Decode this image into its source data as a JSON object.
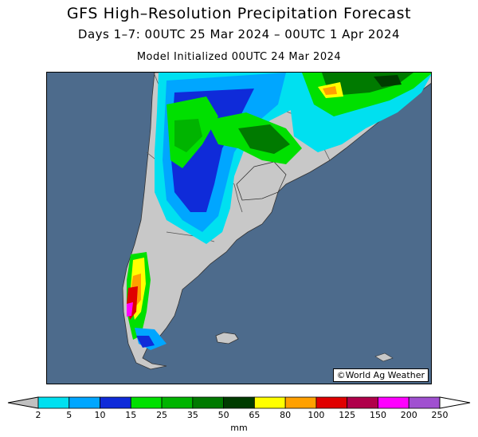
{
  "title": "GFS High–Resolution Precipitation Forecast",
  "subtitle": "Days 1–7: 00UTC 25 Mar 2024 – 00UTC 1 Apr 2024",
  "init_line": "Model Initialized 00UTC 24 Mar 2024",
  "credit": "©World Ag Weather",
  "colors": {
    "ocean": "#4d6b8c",
    "land": "#c8c8c8",
    "border": "#555555"
  },
  "legend": {
    "unit": "mm",
    "ticks": [
      "2",
      "5",
      "10",
      "15",
      "25",
      "35",
      "50",
      "65",
      "80",
      "100",
      "125",
      "150",
      "200",
      "250"
    ],
    "bins": [
      {
        "color": "#c0c0c0"
      },
      {
        "color": "#00e0f0"
      },
      {
        "color": "#00a6ff"
      },
      {
        "color": "#0f2bd9"
      },
      {
        "color": "#00e000"
      },
      {
        "color": "#00b400"
      },
      {
        "color": "#007a00"
      },
      {
        "color": "#003c00"
      },
      {
        "color": "#ffff00"
      },
      {
        "color": "#ffa000"
      },
      {
        "color": "#e00000"
      },
      {
        "color": "#b0004a"
      },
      {
        "color": "#ff00ff"
      },
      {
        "color": "#a050d0"
      },
      {
        "color": "#ffffff"
      }
    ]
  }
}
